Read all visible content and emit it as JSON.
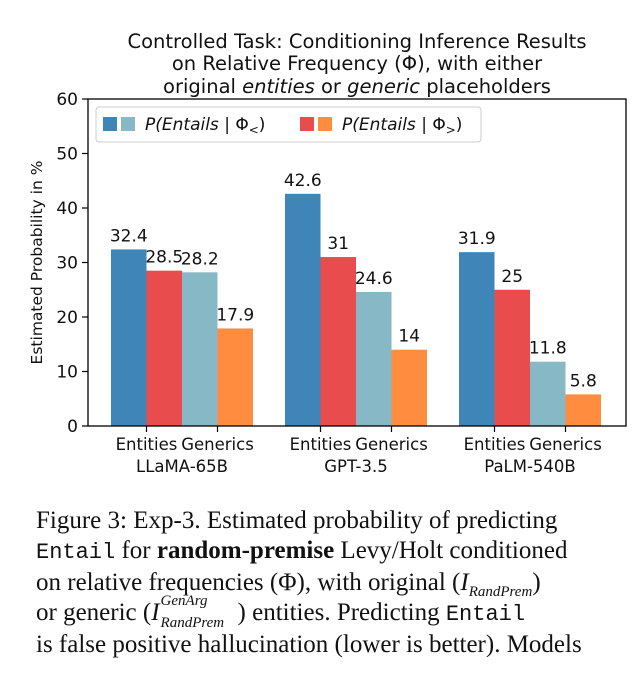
{
  "chart_data": {
    "type": "bar",
    "title_lines": [
      "Controlled Task: Conditioning Inference Results",
      "on Relative Frequency (Φ), with either",
      [
        "original ",
        "entities",
        " or ",
        "generic",
        " placeholders"
      ]
    ],
    "ylabel": "Estimated Probability in %",
    "ylim": [
      0,
      60
    ],
    "yticks": [
      0,
      10,
      20,
      30,
      40,
      50,
      60
    ],
    "groups": [
      "LLaMA-65B",
      "GPT-3.5",
      "PaLM-540B"
    ],
    "subgroups": [
      "Entities",
      "Generics"
    ],
    "legend": [
      {
        "label": "P(Entails | Φ<)",
        "colors": [
          "#3f85b8",
          "#86b8c6"
        ]
      },
      {
        "label": "P(Entails | Φ>)",
        "colors": [
          "#e84c4c",
          "#ff8c3f"
        ]
      }
    ],
    "bars": [
      {
        "group": "LLaMA-65B",
        "subgroup": "Entities",
        "condition": "Φ<",
        "value": 32.4,
        "label": "32.4",
        "color": "#3f85b8"
      },
      {
        "group": "LLaMA-65B",
        "subgroup": "Entities",
        "condition": "Φ>",
        "value": 28.5,
        "label": "28.5",
        "color": "#e84c4c"
      },
      {
        "group": "LLaMA-65B",
        "subgroup": "Generics",
        "condition": "Φ<",
        "value": 28.2,
        "label": "28.2",
        "color": "#86b8c6"
      },
      {
        "group": "LLaMA-65B",
        "subgroup": "Generics",
        "condition": "Φ>",
        "value": 17.9,
        "label": "17.9",
        "color": "#ff8c3f"
      },
      {
        "group": "GPT-3.5",
        "subgroup": "Entities",
        "condition": "Φ<",
        "value": 42.6,
        "label": "42.6",
        "color": "#3f85b8"
      },
      {
        "group": "GPT-3.5",
        "subgroup": "Entities",
        "condition": "Φ>",
        "value": 31,
        "label": "31",
        "color": "#e84c4c"
      },
      {
        "group": "GPT-3.5",
        "subgroup": "Generics",
        "condition": "Φ<",
        "value": 24.6,
        "label": "24.6",
        "color": "#86b8c6"
      },
      {
        "group": "GPT-3.5",
        "subgroup": "Generics",
        "condition": "Φ>",
        "value": 14,
        "label": "14",
        "color": "#ff8c3f"
      },
      {
        "group": "PaLM-540B",
        "subgroup": "Entities",
        "condition": "Φ<",
        "value": 31.9,
        "label": "31.9",
        "color": "#3f85b8"
      },
      {
        "group": "PaLM-540B",
        "subgroup": "Entities",
        "condition": "Φ>",
        "value": 25,
        "label": "25",
        "color": "#e84c4c"
      },
      {
        "group": "PaLM-540B",
        "subgroup": "Generics",
        "condition": "Φ<",
        "value": 11.8,
        "label": "11.8",
        "color": "#86b8c6"
      },
      {
        "group": "PaLM-540B",
        "subgroup": "Generics",
        "condition": "Φ>",
        "value": 5.8,
        "label": "5.8",
        "color": "#ff8c3f"
      }
    ],
    "legend_placement": "top-left",
    "grid": false
  },
  "caption": {
    "figure_label": "Figure 3:",
    "text_1": " Exp-3. Estimated probability of predicting",
    "entail_1": "Entail",
    "text_2": " for ",
    "bold": "random-premise",
    "text_3": " Levy/Holt conditioned",
    "text_4": "on relative frequencies (Φ), with original (",
    "math_I": "I",
    "sub_randprem": "RandPrem",
    "text_5": ")",
    "text_6": "or generic (",
    "sup_genarg": "GenArg",
    "text_7": ") entities.  Predicting ",
    "entail_2": "Entail",
    "text_8": "is false positive hallucination (lower is better). Models"
  }
}
